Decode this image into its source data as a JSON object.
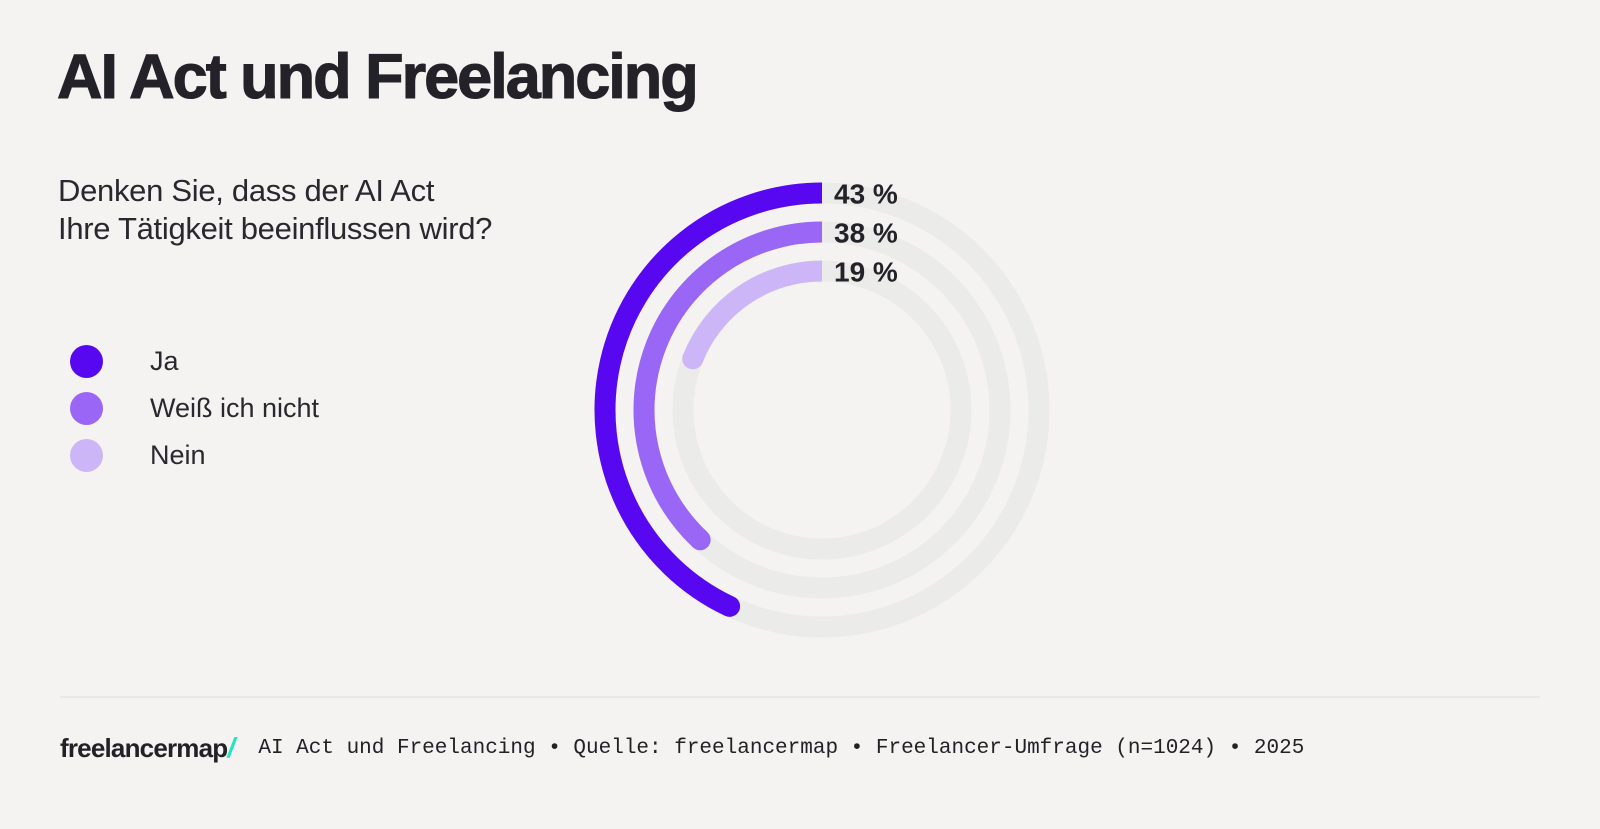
{
  "page": {
    "background_color": "#F4F3F1"
  },
  "header": {
    "title": "AI Act und Freelancing"
  },
  "question": {
    "line1": "Denken Sie, dass der AI Act",
    "line2": "Ihre Tätigkeit beeinflussen wird?"
  },
  "legend": {
    "items": [
      {
        "label": "Ja",
        "color": "#5708F0"
      },
      {
        "label": "Weiß ich nicht",
        "color": "#9966F6"
      },
      {
        "label": "Nein",
        "color": "#CCB6F7"
      }
    ]
  },
  "chart_data": {
    "type": "radial-bar",
    "title": "Denken Sie, dass der AI Act Ihre Tätigkeit beeinflussen wird?",
    "categories": [
      "Ja",
      "Weiß ich nicht",
      "Nein"
    ],
    "values": [
      43,
      38,
      19
    ],
    "labels": [
      "43 %",
      "38 %",
      "19 %"
    ],
    "unit": "%",
    "max_value": 100,
    "colors": [
      "#5708F0",
      "#9966F6",
      "#CCB6F7"
    ],
    "track_color": "#EBEBE9",
    "start_angle_deg": 0,
    "direction": "counterclockwise",
    "radii": [
      217,
      178,
      139
    ],
    "stroke_width": 21,
    "legend_position": "left"
  },
  "footer": {
    "logo_text": "freelancermap",
    "logo_slash": "/",
    "logo_slash_color": "#23E5C0",
    "source_text": "AI Act und Freelancing • Quelle: freelancermap • Freelancer-Umfrage (n=1024) • 2025"
  }
}
